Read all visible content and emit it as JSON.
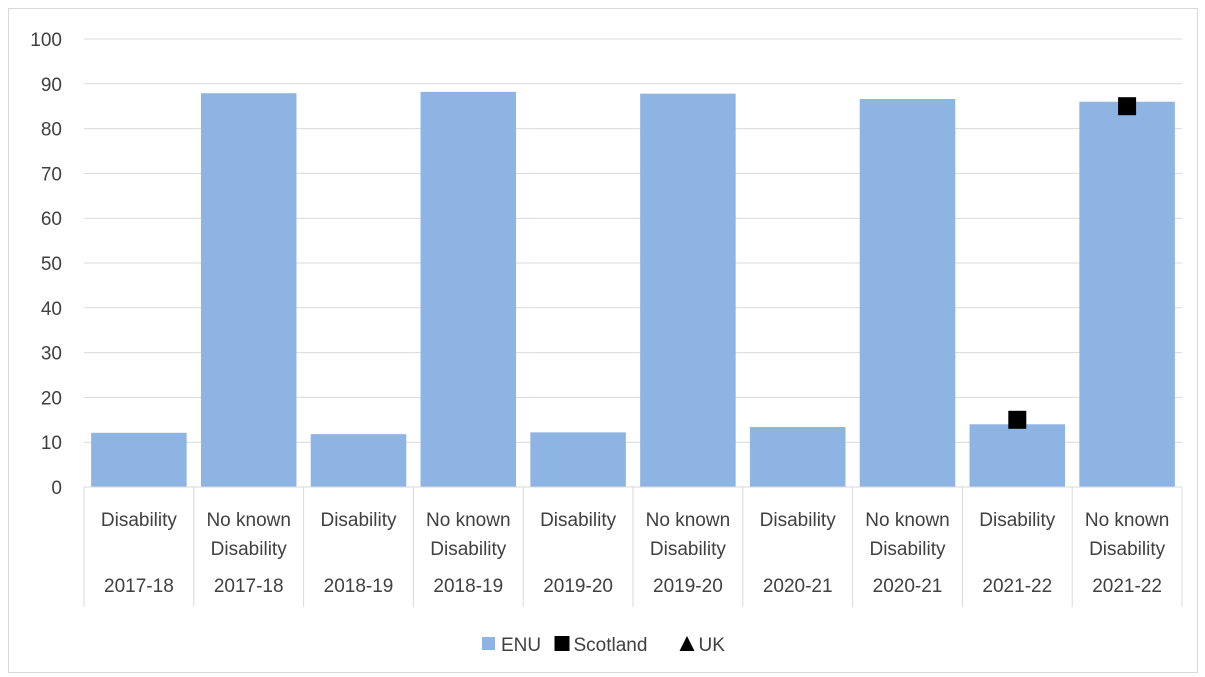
{
  "chart_data": {
    "type": "bar",
    "title": "",
    "xlabel": "",
    "ylabel": "",
    "ylim": [
      0,
      100
    ],
    "yticks": [
      0,
      10,
      20,
      30,
      40,
      50,
      60,
      70,
      80,
      90,
      100
    ],
    "grid": true,
    "legend_position": "bottom",
    "categories": [
      {
        "group": "Disability",
        "year": "2017-18"
      },
      {
        "group": "No known Disability",
        "year": "2017-18"
      },
      {
        "group": "Disability",
        "year": "2018-19"
      },
      {
        "group": "No known Disability",
        "year": "2018-19"
      },
      {
        "group": "Disability",
        "year": "2019-20"
      },
      {
        "group": "No known Disability",
        "year": "2019-20"
      },
      {
        "group": "Disability",
        "year": "2020-21"
      },
      {
        "group": "No known Disability",
        "year": "2020-21"
      },
      {
        "group": "Disability",
        "year": "2021-22"
      },
      {
        "group": "No known Disability",
        "year": "2021-22"
      }
    ],
    "series": [
      {
        "name": "ENU",
        "kind": "bar",
        "color": "#8eb4e3",
        "values": [
          12.1,
          87.9,
          11.8,
          88.2,
          12.2,
          87.8,
          13.4,
          86.6,
          14.0,
          86.0
        ]
      },
      {
        "name": "Scotland",
        "kind": "marker",
        "marker": "square",
        "color": "#000000",
        "values": [
          null,
          null,
          null,
          null,
          null,
          null,
          null,
          null,
          15.0,
          85.0
        ]
      },
      {
        "name": "UK",
        "kind": "marker",
        "marker": "triangle",
        "color": "#000000",
        "values": [
          null,
          null,
          null,
          null,
          null,
          null,
          null,
          null,
          15.5,
          85.0
        ]
      }
    ]
  }
}
